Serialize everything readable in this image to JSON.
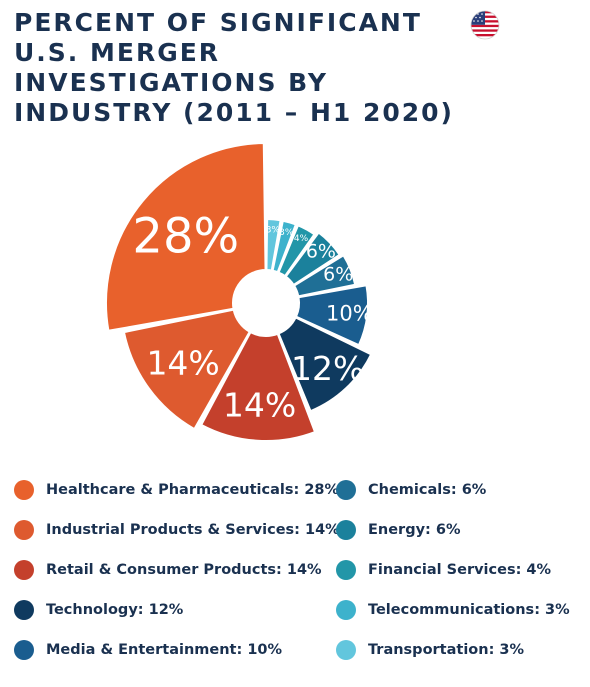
{
  "chart_data": {
    "type": "pie",
    "title": "PERCENT OF SIGNIFICANT U.S. MERGER INVESTIGATIONS BY INDUSTRY (2011 – H1 2020)",
    "unit": "%",
    "slices": [
      {
        "label": "Healthcare & Pharmaceuticals",
        "value": 28,
        "display": "28%",
        "legend": "Healthcare & Pharmaceuticals: 28%",
        "color": "#e8612c"
      },
      {
        "label": "Industrial Products & Services",
        "value": 14,
        "display": "14%",
        "legend": "Industrial Products & Services: 14%",
        "color": "#de5a2f"
      },
      {
        "label": "Retail & Consumer Products",
        "value": 14,
        "display": "14%",
        "legend": "Retail & Consumer Products: 14%",
        "color": "#c4402c"
      },
      {
        "label": "Technology",
        "value": 12,
        "display": "12%",
        "legend": "Technology: 12%",
        "color": "#0f3a5f"
      },
      {
        "label": "Media & Entertainment",
        "value": 10,
        "display": "10%",
        "legend": "Media & Entertainment: 10%",
        "color": "#1a5d8f"
      },
      {
        "label": "Chemicals",
        "value": 6,
        "display": "6%",
        "legend": "Chemicals: 6%",
        "color": "#1f6f96"
      },
      {
        "label": "Energy",
        "value": 6,
        "display": "6%",
        "legend": "Energy: 6%",
        "color": "#1b819c"
      },
      {
        "label": "Financial Services",
        "value": 4,
        "display": "4%",
        "legend": "Financial Services: 4%",
        "color": "#2296a8"
      },
      {
        "label": "Telecommunications",
        "value": 3,
        "display": "3%",
        "legend": "Telecommunications: 3%",
        "color": "#3db2cc"
      },
      {
        "label": "Transportation",
        "value": 3,
        "display": "3%",
        "legend": "Transportation: 3%",
        "color": "#62c6dd"
      }
    ]
  },
  "header": {
    "flag_icon": "us-flag-icon"
  }
}
